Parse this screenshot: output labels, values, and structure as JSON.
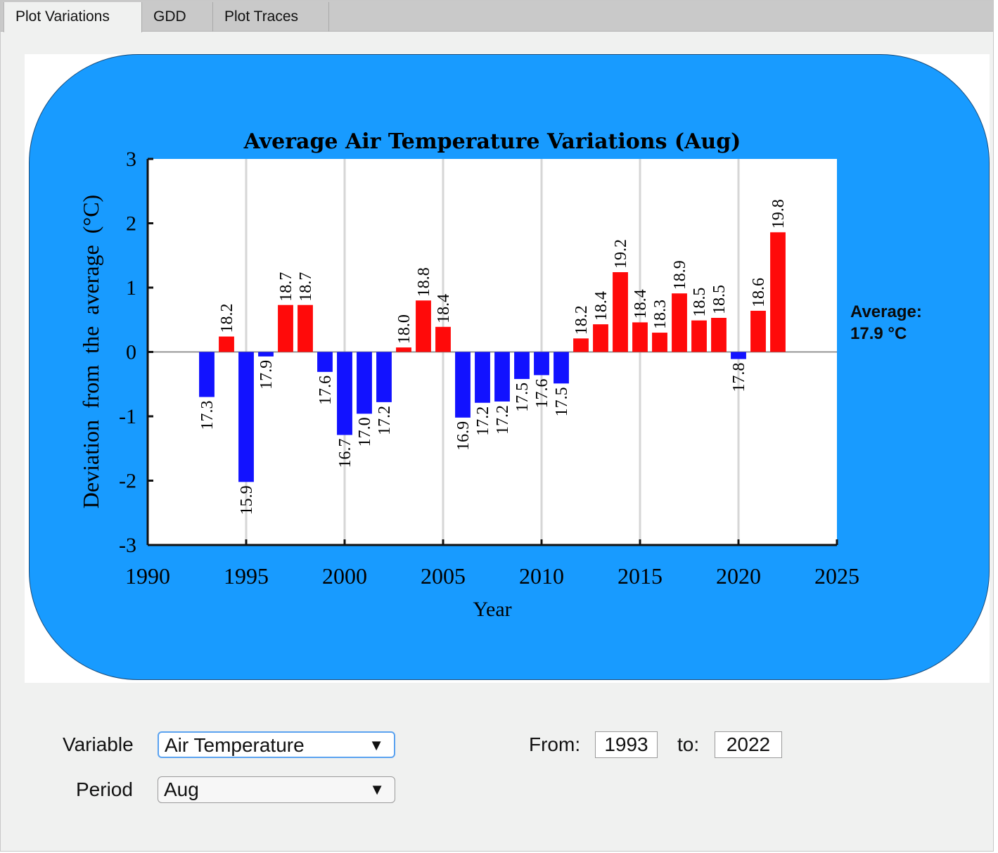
{
  "tabs": [
    {
      "label": "Plot Variations",
      "active": true
    },
    {
      "label": "GDD",
      "active": false
    },
    {
      "label": "Plot Traces",
      "active": false
    }
  ],
  "chart_data": {
    "type": "bar",
    "title": "Average Air Temperature Variations (Aug)",
    "xlabel": "Year",
    "ylabel": "Deviation  from  the  average  (°C)",
    "xlim": [
      1990,
      2025
    ],
    "ylim": [
      -3,
      3
    ],
    "x_ticks": [
      "1990",
      "1995",
      "2000",
      "2005",
      "2010",
      "2015",
      "2020",
      "2025"
    ],
    "y_ticks": [
      "3",
      "2",
      "1",
      "0",
      "-1",
      "-2",
      "-3"
    ],
    "grid": "vertical",
    "baseline": 0,
    "colors": {
      "positive": "#ff0a0a",
      "negative": "#1212ff"
    },
    "years": [
      1993,
      1994,
      1995,
      1996,
      1997,
      1998,
      1999,
      2000,
      2001,
      2002,
      2003,
      2004,
      2005,
      2006,
      2007,
      2008,
      2009,
      2010,
      2011,
      2012,
      2013,
      2014,
      2015,
      2016,
      2017,
      2018,
      2019,
      2020,
      2021,
      2022
    ],
    "deviations": [
      -0.7,
      0.24,
      -2.02,
      -0.07,
      0.73,
      0.73,
      -0.31,
      -1.29,
      -0.96,
      -0.78,
      0.07,
      0.8,
      0.39,
      -1.02,
      -0.79,
      -0.77,
      -0.42,
      -0.36,
      -0.49,
      0.21,
      0.43,
      1.24,
      0.46,
      0.3,
      0.91,
      0.49,
      0.53,
      -0.11,
      0.64,
      1.86
    ],
    "labels": [
      "17.3",
      "18.2",
      "15.9",
      "17.9",
      "18.7",
      "18.7",
      "17.6",
      "16.7",
      "17.0",
      "17.2",
      "18.0",
      "18.8",
      "18.4",
      "16.9",
      "17.2",
      "17.2",
      "17.5",
      "17.6",
      "17.5",
      "18.2",
      "18.4",
      "19.2",
      "18.4",
      "18.3",
      "18.9",
      "18.5",
      "18.5",
      "17.8",
      "18.6",
      "19.8"
    ],
    "average_label": "Average:",
    "average_value": "17.9 °C"
  },
  "controls": {
    "variable_label": "Variable",
    "variable_value": "Air Temperature",
    "period_label": "Period",
    "period_value": "Aug",
    "from_label": "From:",
    "from_value": "1993",
    "to_label": "to:",
    "to_value": "2022",
    "dropdown_glyph": "▼"
  }
}
